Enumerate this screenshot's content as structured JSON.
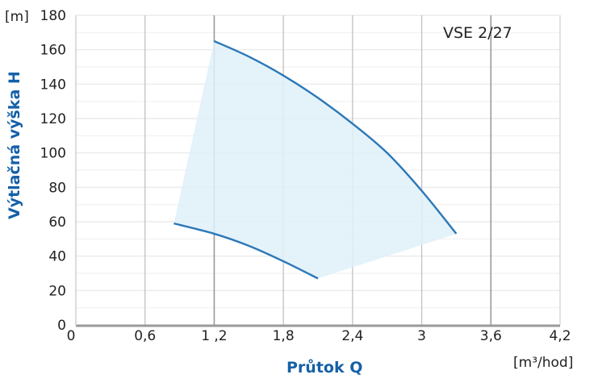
{
  "chart_data": {
    "type": "area",
    "title": "VSE 2/27",
    "xlabel": "Průtok Q",
    "xunit": "[m³/hod]",
    "ylabel": "Výtlačná výška H",
    "yunit": "[m]",
    "xlim": [
      0,
      4.2
    ],
    "ylim": [
      0,
      180
    ],
    "x_ticks": [
      "0",
      "0,6",
      "1 ,2",
      "1,8",
      "2,4",
      "3",
      "3,6",
      "4,2"
    ],
    "x_tick_values": [
      0,
      0.6,
      1.2,
      1.8,
      2.4,
      3.0,
      3.6,
      4.2
    ],
    "y_ticks": [
      "0",
      "20",
      "40",
      "60",
      "80",
      "100",
      "120",
      "140",
      "160",
      "180"
    ],
    "y_tick_values": [
      0,
      20,
      40,
      60,
      80,
      100,
      120,
      140,
      160,
      180
    ],
    "grid": {
      "vertical": true,
      "horizontal_minor": true
    },
    "series": [
      {
        "name": "max curve",
        "x": [
          1.2,
          1.5,
          1.8,
          2.1,
          2.4,
          2.7,
          3.0,
          3.3
        ],
        "y": [
          165,
          156,
          145,
          132,
          117,
          100,
          78,
          53
        ]
      },
      {
        "name": "min curve",
        "x": [
          0.85,
          1.2,
          1.5,
          1.8,
          2.1
        ],
        "y": [
          59,
          53,
          46,
          37,
          27
        ]
      }
    ],
    "operating_region": {
      "description": "shaded region bounded by max curve, min curve and connecting edges",
      "fill_color": "#dff0f8"
    },
    "colors": {
      "curve": "#2b78b8",
      "fill": "#dff0f8",
      "axis_title": "#1560a8",
      "grid": "#c8c8c8",
      "axis": "#9a9a9a"
    }
  }
}
